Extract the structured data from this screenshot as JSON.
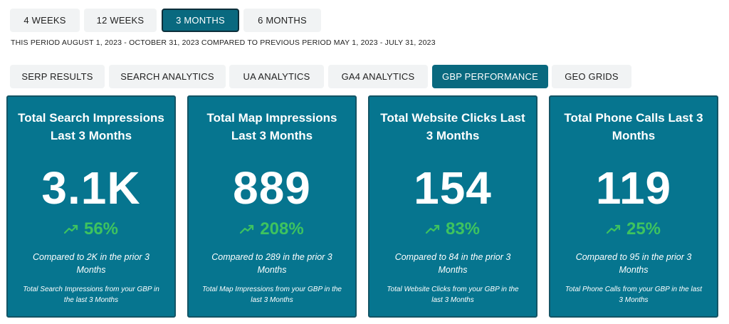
{
  "ranges": [
    {
      "label": "4 WEEKS",
      "active": false
    },
    {
      "label": "12 WEEKS",
      "active": false
    },
    {
      "label": "3 MONTHS",
      "active": true
    },
    {
      "label": "6 MONTHS",
      "active": false
    }
  ],
  "period_text": "THIS PERIOD AUGUST 1, 2023 - OCTOBER 31, 2023 COMPARED TO PREVIOUS PERIOD MAY 1, 2023 - JULY 31, 2023",
  "tabs": [
    {
      "label": "SERP RESULTS",
      "active": false
    },
    {
      "label": "SEARCH ANALYTICS",
      "active": false
    },
    {
      "label": "UA ANALYTICS",
      "active": false
    },
    {
      "label": "GA4 ANALYTICS",
      "active": false
    },
    {
      "label": "GBP PERFORMANCE",
      "active": true
    },
    {
      "label": "GEO GRIDS",
      "active": false
    }
  ],
  "cards": [
    {
      "title": "Total Search Impressions Last 3 Months",
      "value": "3.1K",
      "change": "56%",
      "compare": "Compared to 2K in the prior 3 Months",
      "note": "Total Search Impressions from your GBP in the last 3 Months"
    },
    {
      "title": "Total Map Impressions Last 3 Months",
      "value": "889",
      "change": "208%",
      "compare": "Compared to 289 in the prior 3 Months",
      "note": "Total Map Impressions from your GBP in the last 3 Months"
    },
    {
      "title": "Total Website Clicks Last 3 Months",
      "value": "154",
      "change": "83%",
      "compare": "Compared to 84 in the prior 3 Months",
      "note": "Total Website Clicks from your GBP in the last 3 Months"
    },
    {
      "title": "Total Phone Calls Last 3 Months",
      "value": "119",
      "change": "25%",
      "compare": "Compared to 95 in the prior 3 Months",
      "note": "Total Phone Calls from your GBP in the last 3 Months"
    }
  ],
  "colors": {
    "card_bg": "#06758f",
    "active_bg": "#09697f",
    "increase": "#3ec35f"
  },
  "icons": {
    "trend": "trending-up-icon"
  }
}
